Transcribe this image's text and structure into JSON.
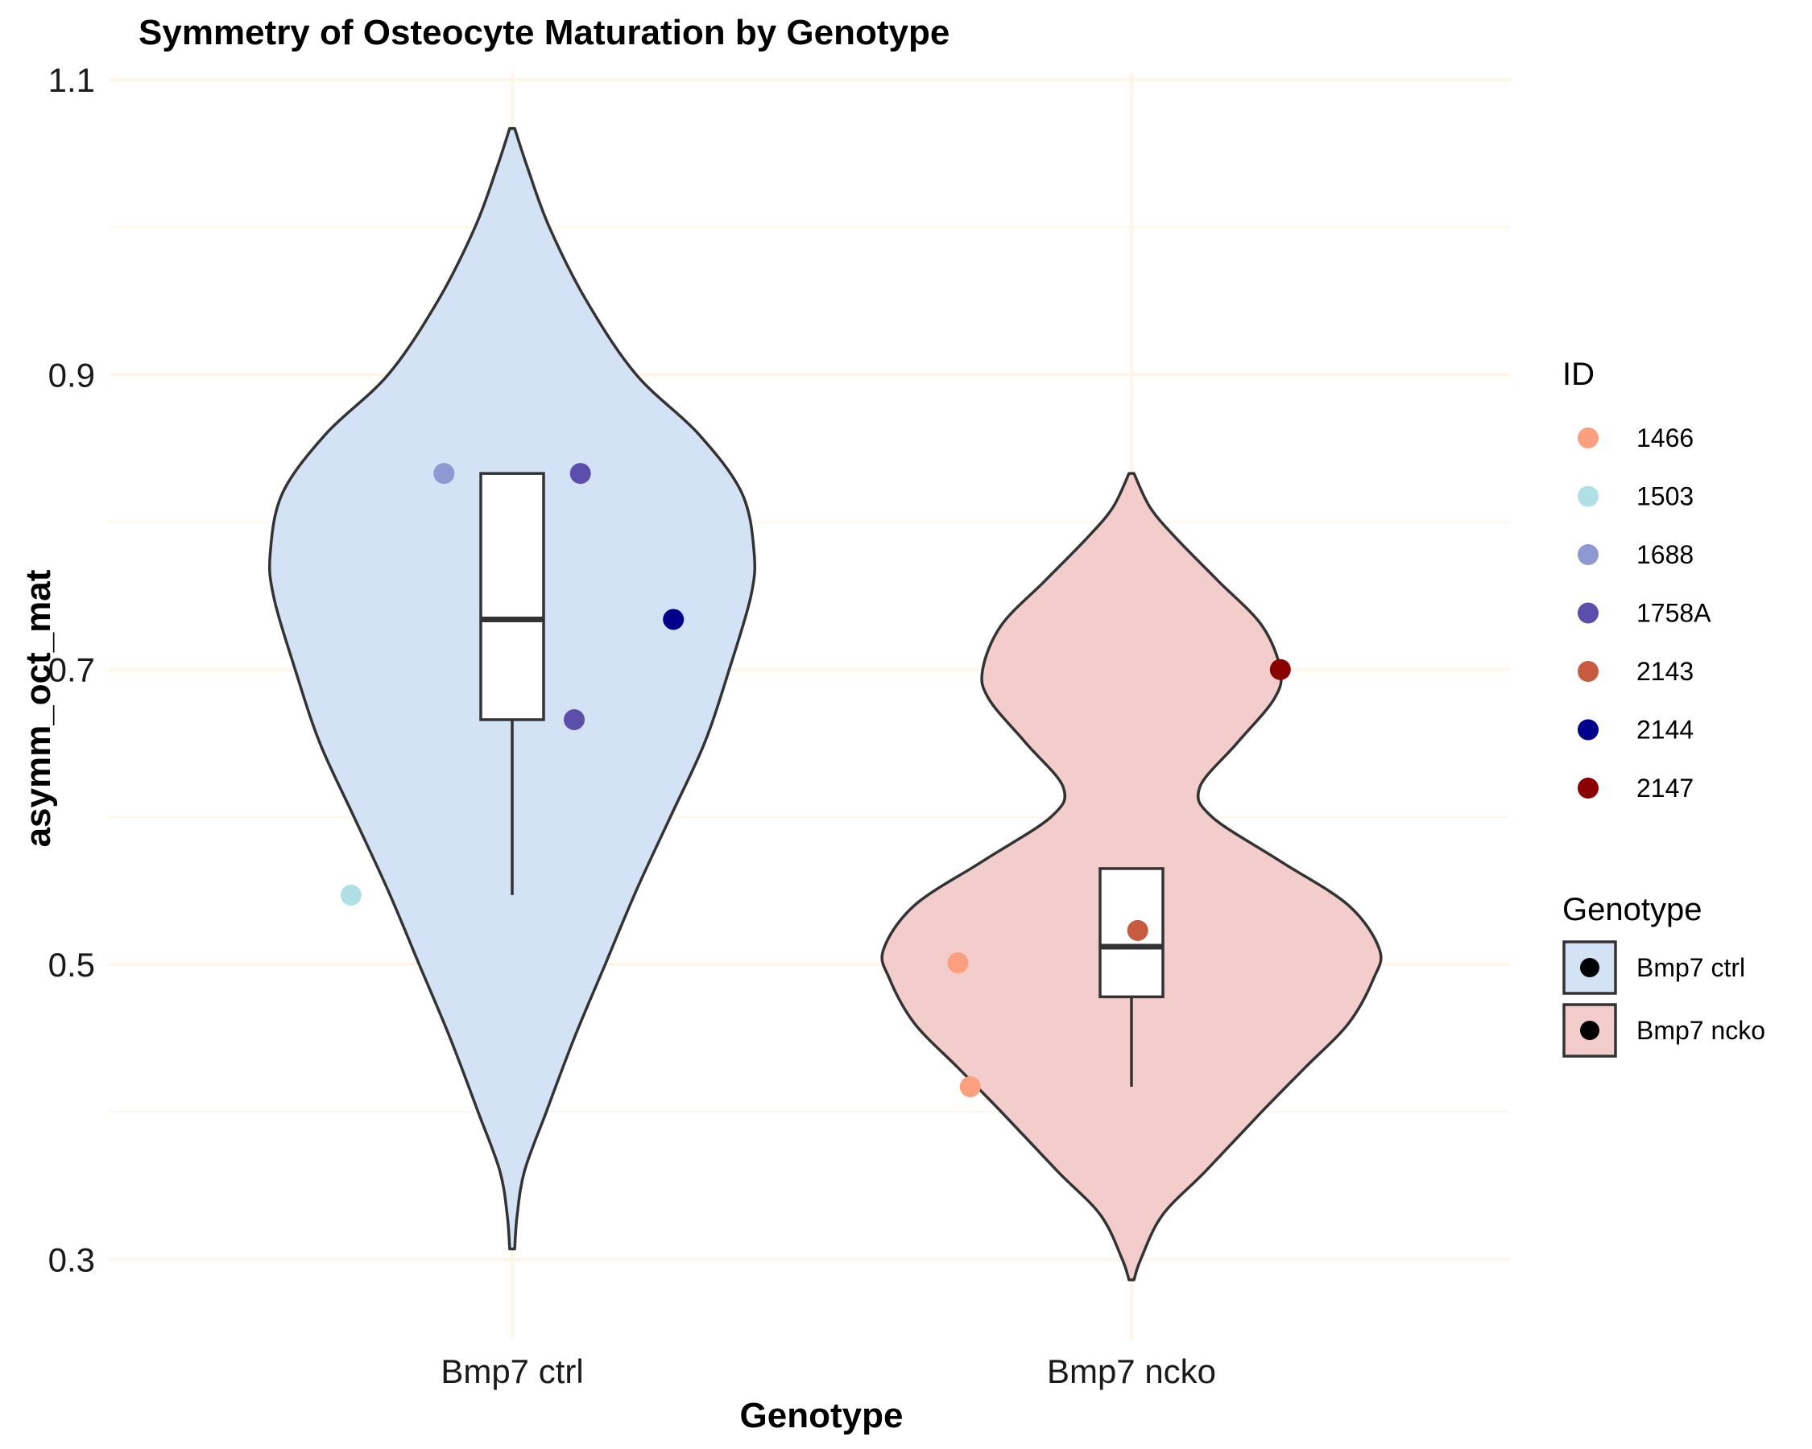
{
  "chart_data": {
    "type": "violin",
    "title": "Symmetry of Osteocyte Maturation by Genotype",
    "xlabel": "Genotype",
    "ylabel": "asymm_oct_mat",
    "ylim": [
      0.245,
      1.105
    ],
    "yticks": [
      0.3,
      0.5,
      0.7,
      0.9,
      1.1
    ],
    "ytick_labels": [
      "0.3",
      "0.5",
      "0.7",
      "0.9",
      "1.1"
    ],
    "categories": [
      "Bmp7 ctrl",
      "Bmp7 ncko"
    ],
    "grid": true,
    "groups": [
      {
        "name": "Bmp7 ctrl",
        "fill": "#d3e3f5",
        "box": {
          "whisker_low": 0.547,
          "q1": 0.666,
          "median": 0.734,
          "q3": 0.833,
          "whisker_high": 0.833
        },
        "violin_range": [
          0.307,
          1.067
        ],
        "violin_profile": [
          [
            0.307,
            0.004
          ],
          [
            0.33,
            0.008
          ],
          [
            0.36,
            0.02
          ],
          [
            0.4,
            0.055
          ],
          [
            0.45,
            0.1
          ],
          [
            0.5,
            0.15
          ],
          [
            0.55,
            0.2
          ],
          [
            0.6,
            0.255
          ],
          [
            0.65,
            0.31
          ],
          [
            0.7,
            0.35
          ],
          [
            0.75,
            0.385
          ],
          [
            0.78,
            0.39
          ],
          [
            0.82,
            0.37
          ],
          [
            0.86,
            0.3
          ],
          [
            0.9,
            0.2
          ],
          [
            0.95,
            0.12
          ],
          [
            1.0,
            0.06
          ],
          [
            1.04,
            0.025
          ],
          [
            1.067,
            0.004
          ]
        ]
      },
      {
        "name": "Bmp7 ncko",
        "fill": "#f3cccc",
        "box": {
          "whisker_low": 0.417,
          "q1": 0.478,
          "median": 0.512,
          "q3": 0.565,
          "whisker_high": 0.565
        },
        "violin_range": [
          0.286,
          0.833
        ],
        "violin_profile": [
          [
            0.286,
            0.004
          ],
          [
            0.3,
            0.015
          ],
          [
            0.33,
            0.05
          ],
          [
            0.36,
            0.12
          ],
          [
            0.4,
            0.21
          ],
          [
            0.43,
            0.28
          ],
          [
            0.46,
            0.35
          ],
          [
            0.49,
            0.39
          ],
          [
            0.51,
            0.4
          ],
          [
            0.54,
            0.35
          ],
          [
            0.57,
            0.24
          ],
          [
            0.6,
            0.13
          ],
          [
            0.62,
            0.11
          ],
          [
            0.65,
            0.17
          ],
          [
            0.68,
            0.23
          ],
          [
            0.7,
            0.24
          ],
          [
            0.73,
            0.21
          ],
          [
            0.76,
            0.14
          ],
          [
            0.79,
            0.07
          ],
          [
            0.81,
            0.03
          ],
          [
            0.833,
            0.004
          ]
        ]
      }
    ],
    "points": [
      {
        "id": "1503",
        "group": "Bmp7 ctrl",
        "jitter": -0.26,
        "y": 0.547
      },
      {
        "id": "1688",
        "group": "Bmp7 ctrl",
        "jitter": -0.11,
        "y": 0.833
      },
      {
        "id": "1758A",
        "group": "Bmp7 ctrl",
        "jitter": 0.11,
        "y": 0.833
      },
      {
        "id": "1758A",
        "group": "Bmp7 ctrl",
        "jitter": 0.1,
        "y": 0.666
      },
      {
        "id": "2144",
        "group": "Bmp7 ctrl",
        "jitter": 0.26,
        "y": 0.734
      },
      {
        "id": "1466",
        "group": "Bmp7 ncko",
        "jitter": -0.28,
        "y": 0.501
      },
      {
        "id": "1466",
        "group": "Bmp7 ncko",
        "jitter": -0.26,
        "y": 0.417
      },
      {
        "id": "2143",
        "group": "Bmp7 ncko",
        "jitter": 0.01,
        "y": 0.523
      },
      {
        "id": "2147",
        "group": "Bmp7 ncko",
        "jitter": 0.24,
        "y": 0.7
      }
    ],
    "legend_id": {
      "title": "ID",
      "entries": [
        {
          "label": "1466",
          "color": "#fc9f7e"
        },
        {
          "label": "1503",
          "color": "#b0e0e6"
        },
        {
          "label": "1688",
          "color": "#8e98d1"
        },
        {
          "label": "1758A",
          "color": "#5c4fac"
        },
        {
          "label": "2143",
          "color": "#c75b3f"
        },
        {
          "label": "2144",
          "color": "#00008b"
        },
        {
          "label": "2147",
          "color": "#8b0000"
        }
      ]
    },
    "legend_genotype": {
      "title": "Genotype",
      "entries": [
        {
          "label": "Bmp7 ctrl",
          "fill": "#d3e3f5"
        },
        {
          "label": "Bmp7 ncko",
          "fill": "#f3cccc"
        }
      ]
    },
    "colors": {
      "grid": "#fff6e8",
      "outline": "#333333",
      "box_fill": "#ffffff"
    }
  }
}
